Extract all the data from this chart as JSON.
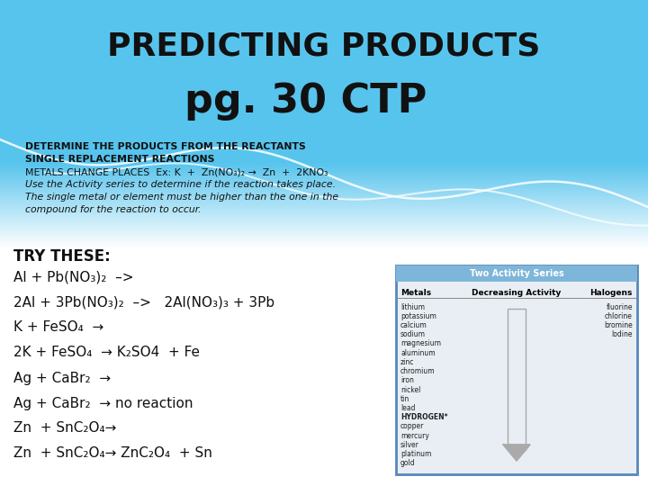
{
  "title_line1": "PREDICTING PRODUCTS",
  "title_line2": "pg. 30 CTP",
  "header_lines": [
    "DETERMINE THE PRODUCTS FROM THE REACTANTS",
    "SINGLE REPLACEMENT REACTIONS",
    "METALS CHANGE PLACES  Ex: K  +  Zn(NO₃)₂ →  Zn  +  2KNO₃",
    "Use the Activity series to determine if the reaction takes place.",
    "The single metal or element must be higher than the one in the",
    "compound for the reaction to occur."
  ],
  "try_label": "TRY THESE:",
  "reactions": [
    "Al + Pb(NO₃)₂  –>",
    "2Al + 3Pb(NO₃)₂  –>   2Al(NO₃)₃ + 3Pb",
    "K + FeSO₄  →",
    "2K + FeSO₄  → K₂SO4  + Fe",
    "Ag + CaBr₂  →",
    "Ag + CaBr₂  → no reaction",
    "Zn  + SnC₂O₄→",
    "Zn  + SnC₂O₄→ ZnC₂O₄  + Sn"
  ],
  "table_title": "Two Activity Series",
  "col1_hdr": "Metals",
  "col2_hdr": "Decreasing Activity",
  "col3_hdr": "Halogens",
  "metals": [
    "lithium",
    "potassium",
    "calcium",
    "sodium",
    "magnesium",
    "aluminum",
    "zinc",
    "chromium",
    "iron",
    "nickel",
    "tin",
    "lead",
    "HYDROGEN*",
    "copper",
    "mercury",
    "silver",
    "platinum",
    "gold"
  ],
  "halogens": [
    "fluorine",
    "chlorine",
    "bromine",
    "Iodine"
  ],
  "blue_top": "#57C4ED",
  "blue_mid": "#5BC8F0",
  "white": "#FFFFFF",
  "text_dark": "#111111",
  "table_header_bg": "#7EB6D9",
  "table_bg": "#E8EEF4",
  "table_border": "#5588BB"
}
